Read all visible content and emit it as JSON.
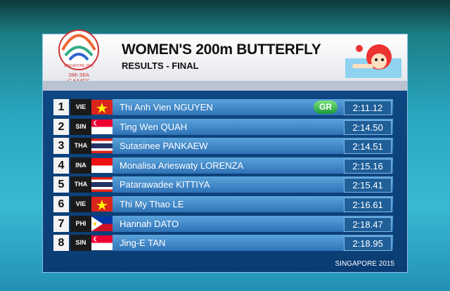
{
  "logo": {
    "ring_text": "SINGAPORE 2015",
    "line1": "28th SEA",
    "line2": "GAMES"
  },
  "header": {
    "title": "WOMEN'S 200m BUTTERFLY",
    "subtitle": "RESULTS - FINAL"
  },
  "table": {
    "rows": [
      {
        "rank": 1,
        "country": "VIE",
        "name": "Thi Anh Vien NGUYEN",
        "record": "GR",
        "time": "2:11.12"
      },
      {
        "rank": 2,
        "country": "SIN",
        "name": "Ting Wen QUAH",
        "time": "2:14.50"
      },
      {
        "rank": 3,
        "country": "THA",
        "name": "Sutasinee PANKAEW",
        "time": "2:14.51"
      },
      {
        "rank": 4,
        "country": "INA",
        "name": "Monalisa Arieswaty LORENZA",
        "time": "2:15.16"
      },
      {
        "rank": 5,
        "country": "THA",
        "name": "Patarawadee KITTIYA",
        "time": "2:15.41"
      },
      {
        "rank": 6,
        "country": "VIE",
        "name": "Thi My Thao LE",
        "time": "2:16.61"
      },
      {
        "rank": 7,
        "country": "PHI",
        "name": "Hannah DATO",
        "time": "2:18.47"
      },
      {
        "rank": 8,
        "country": "SIN",
        "name": "Jing-E TAN",
        "time": "2:18.95"
      }
    ]
  },
  "footer": "SINGAPORE 2015"
}
